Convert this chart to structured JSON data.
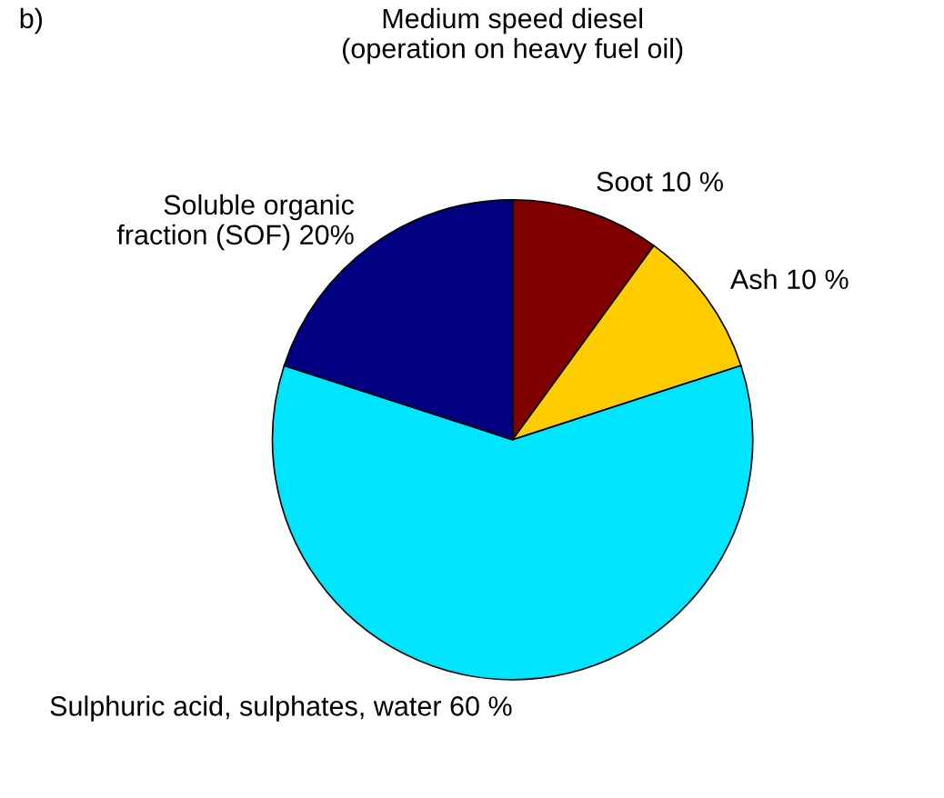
{
  "chart_data": {
    "type": "pie",
    "title": "Medium speed diesel\n(operation on heavy fuel oil)",
    "categories": [
      "Soot",
      "Ash",
      "Sulphuric acid, sulphates, water",
      "Soluble organic\nfraction (SOF)"
    ],
    "values": [
      10,
      10,
      60,
      20
    ],
    "value_labels": [
      "10 %",
      "10 %",
      "60 %",
      "20%"
    ],
    "colors": [
      "#800000",
      "#ffcc00",
      "#00e5ff",
      "#000080"
    ],
    "annotations": [
      "b)"
    ]
  }
}
